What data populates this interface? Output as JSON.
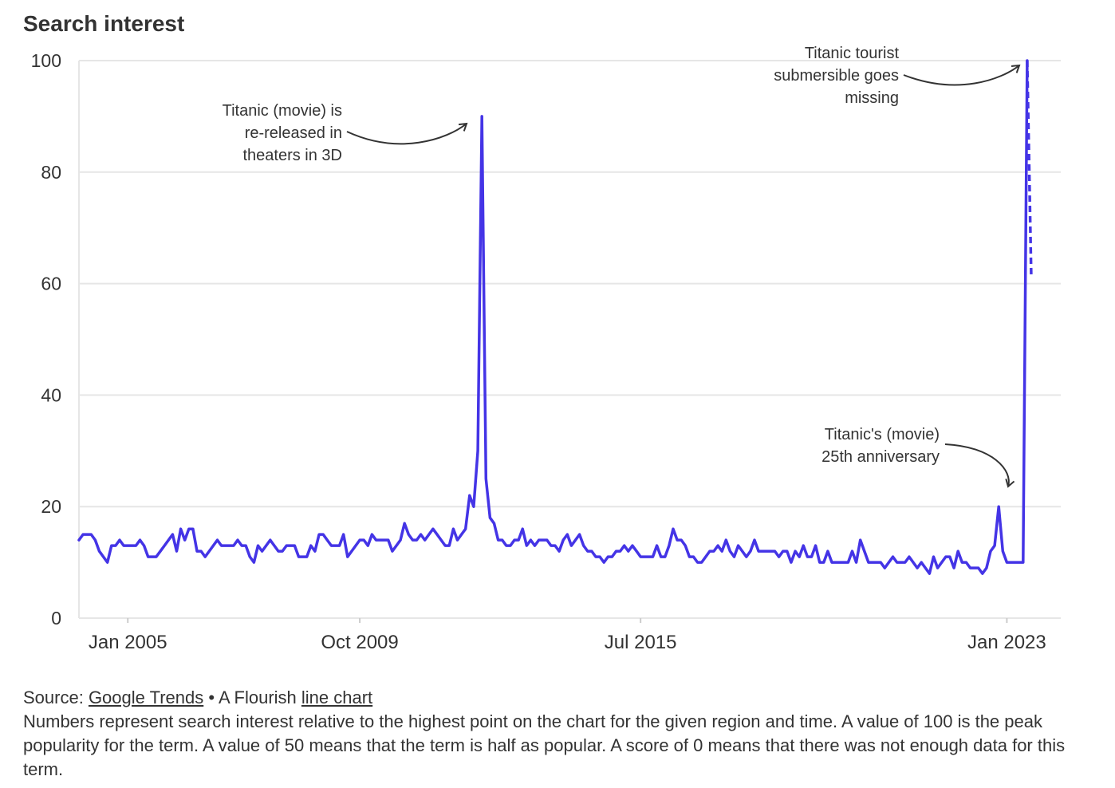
{
  "chart_data": {
    "type": "line",
    "title": "Search interest",
    "xlabel": "",
    "ylabel": "",
    "ylim": [
      0,
      100
    ],
    "yticks": [
      0,
      20,
      40,
      60,
      80,
      100
    ],
    "xlim": [
      "2004-01",
      "2023-07"
    ],
    "xticks": [
      {
        "date": "2005-01",
        "label": "Jan 2005"
      },
      {
        "date": "2009-10",
        "label": "Oct 2009"
      },
      {
        "date": "2015-07",
        "label": "Jul 2015"
      },
      {
        "date": "2023-01",
        "label": "Jan 2023"
      }
    ],
    "grid": true,
    "line_color": "#4434e6",
    "series": [
      {
        "points": [
          [
            "2004-01",
            14
          ],
          [
            "2004-02",
            15
          ],
          [
            "2004-03",
            15
          ],
          [
            "2004-04",
            15
          ],
          [
            "2004-05",
            14
          ],
          [
            "2004-06",
            12
          ],
          [
            "2004-07",
            11
          ],
          [
            "2004-08",
            10
          ],
          [
            "2004-09",
            13
          ],
          [
            "2004-10",
            13
          ],
          [
            "2004-11",
            14
          ],
          [
            "2004-12",
            13
          ],
          [
            "2005-01",
            13
          ],
          [
            "2005-02",
            13
          ],
          [
            "2005-03",
            13
          ],
          [
            "2005-04",
            14
          ],
          [
            "2005-05",
            13
          ],
          [
            "2005-06",
            11
          ],
          [
            "2005-07",
            11
          ],
          [
            "2005-08",
            11
          ],
          [
            "2005-09",
            12
          ],
          [
            "2005-10",
            13
          ],
          [
            "2005-11",
            14
          ],
          [
            "2005-12",
            15
          ],
          [
            "2006-01",
            12
          ],
          [
            "2006-02",
            16
          ],
          [
            "2006-03",
            14
          ],
          [
            "2006-04",
            16
          ],
          [
            "2006-05",
            16
          ],
          [
            "2006-06",
            12
          ],
          [
            "2006-07",
            12
          ],
          [
            "2006-08",
            11
          ],
          [
            "2006-09",
            12
          ],
          [
            "2006-10",
            13
          ],
          [
            "2006-11",
            14
          ],
          [
            "2006-12",
            13
          ],
          [
            "2007-01",
            13
          ],
          [
            "2007-02",
            13
          ],
          [
            "2007-03",
            13
          ],
          [
            "2007-04",
            14
          ],
          [
            "2007-05",
            13
          ],
          [
            "2007-06",
            13
          ],
          [
            "2007-07",
            11
          ],
          [
            "2007-08",
            10
          ],
          [
            "2007-09",
            13
          ],
          [
            "2007-10",
            12
          ],
          [
            "2007-11",
            13
          ],
          [
            "2007-12",
            14
          ],
          [
            "2008-01",
            13
          ],
          [
            "2008-02",
            12
          ],
          [
            "2008-03",
            12
          ],
          [
            "2008-04",
            13
          ],
          [
            "2008-05",
            13
          ],
          [
            "2008-06",
            13
          ],
          [
            "2008-07",
            11
          ],
          [
            "2008-08",
            11
          ],
          [
            "2008-09",
            11
          ],
          [
            "2008-10",
            13
          ],
          [
            "2008-11",
            12
          ],
          [
            "2008-12",
            15
          ],
          [
            "2009-01",
            15
          ],
          [
            "2009-02",
            14
          ],
          [
            "2009-03",
            13
          ],
          [
            "2009-04",
            13
          ],
          [
            "2009-05",
            13
          ],
          [
            "2009-06",
            15
          ],
          [
            "2009-07",
            11
          ],
          [
            "2009-08",
            12
          ],
          [
            "2009-09",
            13
          ],
          [
            "2009-10",
            14
          ],
          [
            "2009-11",
            14
          ],
          [
            "2009-12",
            13
          ],
          [
            "2010-01",
            15
          ],
          [
            "2010-02",
            14
          ],
          [
            "2010-03",
            14
          ],
          [
            "2010-04",
            14
          ],
          [
            "2010-05",
            14
          ],
          [
            "2010-06",
            12
          ],
          [
            "2010-07",
            13
          ],
          [
            "2010-08",
            14
          ],
          [
            "2010-09",
            17
          ],
          [
            "2010-10",
            15
          ],
          [
            "2010-11",
            14
          ],
          [
            "2010-12",
            14
          ],
          [
            "2011-01",
            15
          ],
          [
            "2011-02",
            14
          ],
          [
            "2011-03",
            15
          ],
          [
            "2011-04",
            16
          ],
          [
            "2011-05",
            15
          ],
          [
            "2011-06",
            14
          ],
          [
            "2011-07",
            13
          ],
          [
            "2011-08",
            13
          ],
          [
            "2011-09",
            16
          ],
          [
            "2011-10",
            14
          ],
          [
            "2011-11",
            15
          ],
          [
            "2011-12",
            16
          ],
          [
            "2012-01",
            22
          ],
          [
            "2012-02",
            20
          ],
          [
            "2012-03",
            30
          ],
          [
            "2012-04",
            90
          ],
          [
            "2012-05",
            25
          ],
          [
            "2012-06",
            18
          ],
          [
            "2012-07",
            17
          ],
          [
            "2012-08",
            14
          ],
          [
            "2012-09",
            14
          ],
          [
            "2012-10",
            13
          ],
          [
            "2012-11",
            13
          ],
          [
            "2012-12",
            14
          ],
          [
            "2013-01",
            14
          ],
          [
            "2013-02",
            16
          ],
          [
            "2013-03",
            13
          ],
          [
            "2013-04",
            14
          ],
          [
            "2013-05",
            13
          ],
          [
            "2013-06",
            14
          ],
          [
            "2013-07",
            14
          ],
          [
            "2013-08",
            14
          ],
          [
            "2013-09",
            13
          ],
          [
            "2013-10",
            13
          ],
          [
            "2013-11",
            12
          ],
          [
            "2013-12",
            14
          ],
          [
            "2014-01",
            15
          ],
          [
            "2014-02",
            13
          ],
          [
            "2014-03",
            14
          ],
          [
            "2014-04",
            15
          ],
          [
            "2014-05",
            13
          ],
          [
            "2014-06",
            12
          ],
          [
            "2014-07",
            12
          ],
          [
            "2014-08",
            11
          ],
          [
            "2014-09",
            11
          ],
          [
            "2014-10",
            10
          ],
          [
            "2014-11",
            11
          ],
          [
            "2014-12",
            11
          ],
          [
            "2015-01",
            12
          ],
          [
            "2015-02",
            12
          ],
          [
            "2015-03",
            13
          ],
          [
            "2015-04",
            12
          ],
          [
            "2015-05",
            13
          ],
          [
            "2015-06",
            12
          ],
          [
            "2015-07",
            11
          ],
          [
            "2015-08",
            11
          ],
          [
            "2015-09",
            11
          ],
          [
            "2015-10",
            11
          ],
          [
            "2015-11",
            13
          ],
          [
            "2015-12",
            11
          ],
          [
            "2016-01",
            11
          ],
          [
            "2016-02",
            13
          ],
          [
            "2016-03",
            16
          ],
          [
            "2016-04",
            14
          ],
          [
            "2016-05",
            14
          ],
          [
            "2016-06",
            13
          ],
          [
            "2016-07",
            11
          ],
          [
            "2016-08",
            11
          ],
          [
            "2016-09",
            10
          ],
          [
            "2016-10",
            10
          ],
          [
            "2016-11",
            11
          ],
          [
            "2016-12",
            12
          ],
          [
            "2017-01",
            12
          ],
          [
            "2017-02",
            13
          ],
          [
            "2017-03",
            12
          ],
          [
            "2017-04",
            14
          ],
          [
            "2017-05",
            12
          ],
          [
            "2017-06",
            11
          ],
          [
            "2017-07",
            13
          ],
          [
            "2017-08",
            12
          ],
          [
            "2017-09",
            11
          ],
          [
            "2017-10",
            12
          ],
          [
            "2017-11",
            14
          ],
          [
            "2017-12",
            12
          ],
          [
            "2018-01",
            12
          ],
          [
            "2018-02",
            12
          ],
          [
            "2018-03",
            12
          ],
          [
            "2018-04",
            12
          ],
          [
            "2018-05",
            11
          ],
          [
            "2018-06",
            12
          ],
          [
            "2018-07",
            12
          ],
          [
            "2018-08",
            10
          ],
          [
            "2018-09",
            12
          ],
          [
            "2018-10",
            11
          ],
          [
            "2018-11",
            13
          ],
          [
            "2018-12",
            11
          ],
          [
            "2019-01",
            11
          ],
          [
            "2019-02",
            13
          ],
          [
            "2019-03",
            10
          ],
          [
            "2019-04",
            10
          ],
          [
            "2019-05",
            12
          ],
          [
            "2019-06",
            10
          ],
          [
            "2019-07",
            10
          ],
          [
            "2019-08",
            10
          ],
          [
            "2019-09",
            10
          ],
          [
            "2019-10",
            10
          ],
          [
            "2019-11",
            12
          ],
          [
            "2019-12",
            10
          ],
          [
            "2020-01",
            14
          ],
          [
            "2020-02",
            12
          ],
          [
            "2020-03",
            10
          ],
          [
            "2020-04",
            10
          ],
          [
            "2020-05",
            10
          ],
          [
            "2020-06",
            10
          ],
          [
            "2020-07",
            9
          ],
          [
            "2020-08",
            10
          ],
          [
            "2020-09",
            11
          ],
          [
            "2020-10",
            10
          ],
          [
            "2020-11",
            10
          ],
          [
            "2020-12",
            10
          ],
          [
            "2021-01",
            11
          ],
          [
            "2021-02",
            10
          ],
          [
            "2021-03",
            9
          ],
          [
            "2021-04",
            10
          ],
          [
            "2021-05",
            9
          ],
          [
            "2021-06",
            8
          ],
          [
            "2021-07",
            11
          ],
          [
            "2021-08",
            9
          ],
          [
            "2021-09",
            10
          ],
          [
            "2021-10",
            11
          ],
          [
            "2021-11",
            11
          ],
          [
            "2021-12",
            9
          ],
          [
            "2022-01",
            12
          ],
          [
            "2022-02",
            10
          ],
          [
            "2022-03",
            10
          ],
          [
            "2022-04",
            9
          ],
          [
            "2022-05",
            9
          ],
          [
            "2022-06",
            9
          ],
          [
            "2022-07",
            8
          ],
          [
            "2022-08",
            9
          ],
          [
            "2022-09",
            12
          ],
          [
            "2022-10",
            13
          ],
          [
            "2022-11",
            20
          ],
          [
            "2022-12",
            12
          ],
          [
            "2023-01",
            10
          ],
          [
            "2023-02",
            10
          ],
          [
            "2023-03",
            10
          ],
          [
            "2023-04",
            10
          ],
          [
            "2023-05",
            10
          ],
          [
            "2023-06",
            100
          ],
          [
            "2023-07",
            61
          ]
        ]
      }
    ],
    "dashed_last_segment": true,
    "annotations": [
      {
        "lines": [
          "Titanic (movie) is",
          "re-released in",
          "theaters in 3D"
        ],
        "x": "2012-04",
        "y": 90
      },
      {
        "lines": [
          "Titanic tourist",
          "submersible goes",
          "missing"
        ],
        "x": "2023-06",
        "y": 100
      },
      {
        "lines": [
          "Titanic's (movie)",
          "25th anniversary"
        ],
        "x": "2022-11",
        "y": 20
      }
    ]
  },
  "footer": {
    "source_prefix": "Source: ",
    "source_link": "Google Trends",
    "separator": " • A Flourish ",
    "type_link": "line chart",
    "note": "Numbers represent search interest relative to the highest point on the chart for the given region and time. A value of 100 is the peak popularity for the term. A value of 50 means that the term is half as popular. A score of 0 means that there was not enough data for this term."
  }
}
